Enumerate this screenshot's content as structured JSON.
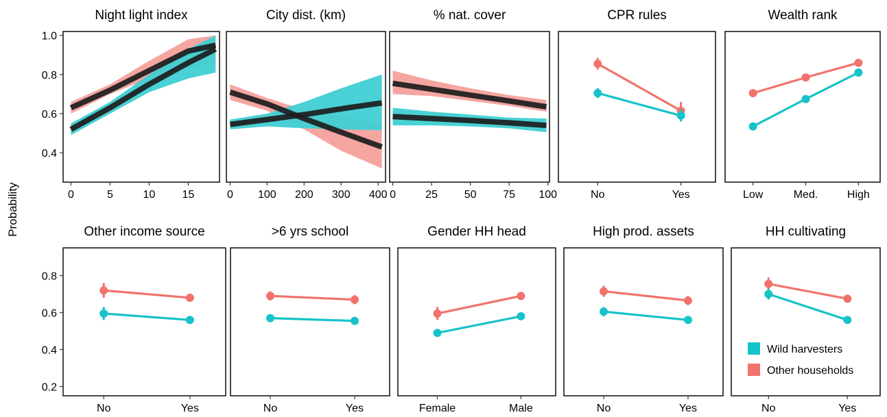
{
  "figure": {
    "ylabel": "Probability",
    "colors": {
      "wild_harvesters": "#16c3c8",
      "wild_harvesters_band": "#3fcfd3",
      "other_households": "#f1736c",
      "other_households_band": "#f2908a",
      "fit_line": "#1d1d1d",
      "frame": "#1a1a1a"
    }
  },
  "legend": {
    "items": [
      {
        "label": "Wild harvesters",
        "color": "#16c3c8"
      },
      {
        "label": "Other households",
        "color": "#f1736c"
      }
    ]
  },
  "chart_data": [
    {
      "type": "line",
      "title": "Night light index",
      "xlim": [
        -1,
        19
      ],
      "xticks": [
        0,
        5,
        10,
        15
      ],
      "xtick_labels": [
        "0",
        "5",
        "10",
        "15"
      ],
      "ylim": [
        0.25,
        1.02
      ],
      "yticks": [
        0.4,
        0.6,
        0.8,
        1.0
      ],
      "ytick_labels": [
        "0.4",
        "0.6",
        "0.8",
        "1.0"
      ],
      "series": [
        {
          "name": "Wild harvesters",
          "x": [
            0,
            5,
            10,
            15,
            18.5
          ],
          "y": [
            0.52,
            0.63,
            0.75,
            0.86,
            0.93
          ],
          "lower": [
            0.49,
            0.6,
            0.71,
            0.78,
            0.81
          ],
          "upper": [
            0.55,
            0.66,
            0.8,
            0.93,
            1.0
          ]
        },
        {
          "name": "Other households",
          "x": [
            0,
            5,
            10,
            15,
            18.5
          ],
          "y": [
            0.63,
            0.72,
            0.82,
            0.92,
            0.95
          ],
          "lower": [
            0.6,
            0.7,
            0.78,
            0.84,
            0.85
          ],
          "upper": [
            0.66,
            0.75,
            0.87,
            0.98,
            1.0
          ]
        }
      ]
    },
    {
      "type": "line",
      "title": "City dist. (km)",
      "xlim": [
        -10,
        420
      ],
      "xticks": [
        0,
        100,
        200,
        300,
        400
      ],
      "xtick_labels": [
        "0",
        "100",
        "200",
        "300",
        "400"
      ],
      "ylim": [
        0.25,
        1.02
      ],
      "yticks": [
        0.4,
        0.6,
        0.8,
        1.0
      ],
      "ytick_labels": [
        "0.4",
        "0.6",
        "0.8",
        "1.0"
      ],
      "series": [
        {
          "name": "Wild harvesters",
          "x": [
            0,
            100,
            200,
            300,
            410
          ],
          "y": [
            0.545,
            0.57,
            0.595,
            0.625,
            0.655
          ],
          "lower": [
            0.52,
            0.535,
            0.525,
            0.52,
            0.515
          ],
          "upper": [
            0.57,
            0.6,
            0.66,
            0.73,
            0.8
          ]
        },
        {
          "name": "Other households",
          "x": [
            0,
            100,
            200,
            300,
            410
          ],
          "y": [
            0.71,
            0.65,
            0.575,
            0.505,
            0.43
          ],
          "lower": [
            0.67,
            0.615,
            0.52,
            0.41,
            0.32
          ],
          "upper": [
            0.75,
            0.68,
            0.62,
            0.59,
            0.54
          ]
        }
      ]
    },
    {
      "type": "line",
      "title": "% nat. cover",
      "xlim": [
        -2,
        101
      ],
      "xticks": [
        0,
        25,
        50,
        75,
        100
      ],
      "xtick_labels": [
        "0",
        "25",
        "50",
        "75",
        "100"
      ],
      "ylim": [
        0.25,
        1.02
      ],
      "yticks": [
        0.4,
        0.6,
        0.8,
        1.0
      ],
      "ytick_labels": [
        "0.4",
        "0.6",
        "0.8",
        "1.0"
      ],
      "series": [
        {
          "name": "Wild harvesters",
          "x": [
            0,
            25,
            50,
            75,
            99
          ],
          "y": [
            0.585,
            0.575,
            0.565,
            0.553,
            0.54
          ],
          "lower": [
            0.54,
            0.54,
            0.535,
            0.525,
            0.505
          ],
          "upper": [
            0.63,
            0.61,
            0.595,
            0.58,
            0.575
          ]
        },
        {
          "name": "Other households",
          "x": [
            0,
            25,
            50,
            75,
            99
          ],
          "y": [
            0.755,
            0.725,
            0.695,
            0.665,
            0.635
          ],
          "lower": [
            0.7,
            0.69,
            0.665,
            0.64,
            0.61
          ],
          "upper": [
            0.82,
            0.77,
            0.73,
            0.695,
            0.67
          ]
        }
      ]
    },
    {
      "type": "point",
      "title": "CPR rules",
      "categories": [
        "No",
        "Yes"
      ],
      "ylim": [
        0.25,
        1.02
      ],
      "yticks": [
        0.4,
        0.6,
        0.8,
        1.0
      ],
      "ytick_labels": [
        "0.4",
        "0.6",
        "0.8",
        "1.0"
      ],
      "series": [
        {
          "name": "Wild harvesters",
          "values": [
            0.705,
            0.59
          ],
          "lower": [
            0.68,
            0.56
          ],
          "upper": [
            0.73,
            0.62
          ]
        },
        {
          "name": "Other households",
          "values": [
            0.855,
            0.615
          ],
          "lower": [
            0.825,
            0.57
          ],
          "upper": [
            0.885,
            0.66
          ]
        }
      ]
    },
    {
      "type": "point",
      "title": "Wealth rank",
      "categories": [
        "Low",
        "Med.",
        "High"
      ],
      "ylim": [
        0.25,
        1.02
      ],
      "yticks": [
        0.4,
        0.6,
        0.8,
        1.0
      ],
      "ytick_labels": [
        "0.4",
        "0.6",
        "0.8",
        "1.0"
      ],
      "series": [
        {
          "name": "Wild harvesters",
          "values": [
            0.535,
            0.675,
            0.81
          ],
          "lower": [
            0.525,
            0.665,
            0.795
          ],
          "upper": [
            0.545,
            0.685,
            0.825
          ]
        },
        {
          "name": "Other households",
          "values": [
            0.705,
            0.785,
            0.86
          ],
          "lower": [
            0.685,
            0.775,
            0.84
          ],
          "upper": [
            0.725,
            0.795,
            0.88
          ]
        }
      ]
    },
    {
      "type": "point",
      "title": "Other income source",
      "categories": [
        "No",
        "Yes"
      ],
      "ylim": [
        0.15,
        0.95
      ],
      "yticks": [
        0.2,
        0.4,
        0.6,
        0.8
      ],
      "ytick_labels": [
        "0.2",
        "0.4",
        "0.6",
        "0.8"
      ],
      "series": [
        {
          "name": "Wild harvesters",
          "values": [
            0.595,
            0.56
          ],
          "lower": [
            0.56,
            0.545
          ],
          "upper": [
            0.63,
            0.575
          ]
        },
        {
          "name": "Other households",
          "values": [
            0.72,
            0.68
          ],
          "lower": [
            0.68,
            0.66
          ],
          "upper": [
            0.76,
            0.7
          ]
        }
      ]
    },
    {
      "type": "point",
      "title": ">6 yrs school",
      "categories": [
        "No",
        "Yes"
      ],
      "ylim": [
        0.15,
        0.95
      ],
      "yticks": [
        0.2,
        0.4,
        0.6,
        0.8
      ],
      "ytick_labels": [
        "0.2",
        "0.4",
        "0.6",
        "0.8"
      ],
      "series": [
        {
          "name": "Wild harvesters",
          "values": [
            0.57,
            0.555
          ],
          "lower": [
            0.55,
            0.535
          ],
          "upper": [
            0.59,
            0.575
          ]
        },
        {
          "name": "Other households",
          "values": [
            0.69,
            0.67
          ],
          "lower": [
            0.665,
            0.645
          ],
          "upper": [
            0.715,
            0.695
          ]
        }
      ]
    },
    {
      "type": "point",
      "title": "Gender HH head",
      "categories": [
        "Female",
        "Male"
      ],
      "ylim": [
        0.15,
        0.95
      ],
      "yticks": [
        0.2,
        0.4,
        0.6,
        0.8
      ],
      "ytick_labels": [
        "0.2",
        "0.4",
        "0.6",
        "0.8"
      ],
      "series": [
        {
          "name": "Wild harvesters",
          "values": [
            0.49,
            0.58
          ],
          "lower": [
            0.47,
            0.565
          ],
          "upper": [
            0.51,
            0.595
          ]
        },
        {
          "name": "Other households",
          "values": [
            0.595,
            0.69
          ],
          "lower": [
            0.56,
            0.67
          ],
          "upper": [
            0.63,
            0.71
          ]
        }
      ]
    },
    {
      "type": "point",
      "title": "High prod. assets",
      "categories": [
        "No",
        "Yes"
      ],
      "ylim": [
        0.15,
        0.95
      ],
      "yticks": [
        0.2,
        0.4,
        0.6,
        0.8
      ],
      "ytick_labels": [
        "0.2",
        "0.4",
        "0.6",
        "0.8"
      ],
      "series": [
        {
          "name": "Wild harvesters",
          "values": [
            0.605,
            0.56
          ],
          "lower": [
            0.58,
            0.545
          ],
          "upper": [
            0.63,
            0.575
          ]
        },
        {
          "name": "Other households",
          "values": [
            0.715,
            0.665
          ],
          "lower": [
            0.685,
            0.64
          ],
          "upper": [
            0.745,
            0.69
          ]
        }
      ]
    },
    {
      "type": "point",
      "title": "HH cultivating",
      "categories": [
        "No",
        "Yes"
      ],
      "ylim": [
        0.15,
        0.95
      ],
      "yticks": [
        0.2,
        0.4,
        0.6,
        0.8
      ],
      "ytick_labels": [
        "0.2",
        "0.4",
        "0.6",
        "0.8"
      ],
      "series": [
        {
          "name": "Wild harvesters",
          "values": [
            0.7,
            0.56
          ],
          "lower": [
            0.67,
            0.545
          ],
          "upper": [
            0.73,
            0.575
          ]
        },
        {
          "name": "Other households",
          "values": [
            0.755,
            0.675
          ],
          "lower": [
            0.72,
            0.655
          ],
          "upper": [
            0.79,
            0.695
          ]
        }
      ]
    }
  ]
}
